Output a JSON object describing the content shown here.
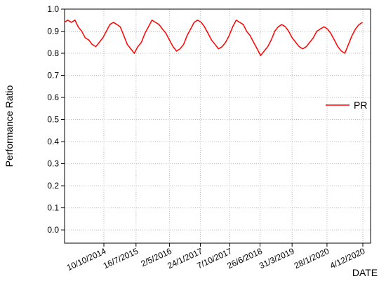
{
  "chart_data": {
    "type": "line",
    "ylabel": "Performance Ratio",
    "xlabel": "DATE",
    "series": [
      {
        "name": "PR",
        "color": "#ff0000",
        "x": [
          "1/11/2013",
          "1/12/2013",
          "1/1/2014",
          "1/2/2014",
          "1/3/2014",
          "1/4/2014",
          "1/5/2014",
          "1/6/2014",
          "1/7/2014",
          "1/8/2014",
          "1/9/2014",
          "1/10/2014",
          "1/11/2014",
          "1/12/2014",
          "1/1/2015",
          "1/2/2015",
          "1/3/2015",
          "1/4/2015",
          "1/5/2015",
          "1/6/2015",
          "1/7/2015",
          "1/8/2015",
          "1/9/2015",
          "1/10/2015",
          "1/11/2015",
          "1/12/2015",
          "1/1/2016",
          "1/2/2016",
          "1/3/2016",
          "1/4/2016",
          "1/5/2016",
          "1/6/2016",
          "1/7/2016",
          "1/8/2016",
          "1/9/2016",
          "1/10/2016",
          "1/11/2016",
          "1/12/2016",
          "1/1/2017",
          "1/2/2017",
          "1/3/2017",
          "1/4/2017",
          "1/5/2017",
          "1/6/2017",
          "1/7/2017",
          "1/8/2017",
          "1/9/2017",
          "1/10/2017",
          "1/11/2017",
          "1/12/2017",
          "1/1/2018",
          "1/2/2018",
          "1/3/2018",
          "1/4/2018",
          "1/5/2018",
          "1/6/2018",
          "1/7/2018",
          "1/8/2018",
          "1/9/2018",
          "1/10/2018",
          "1/11/2018",
          "1/12/2018",
          "1/1/2019",
          "1/2/2019",
          "1/3/2019",
          "1/4/2019",
          "1/5/2019",
          "1/6/2019",
          "1/7/2019",
          "1/8/2019",
          "1/9/2019",
          "1/10/2019",
          "1/11/2019",
          "1/12/2019",
          "1/1/2020",
          "1/2/2020",
          "1/3/2020",
          "1/4/2020",
          "1/5/2020",
          "1/6/2020",
          "1/7/2020",
          "1/8/2020",
          "1/9/2020",
          "1/10/2020",
          "1/11/2020",
          "1/12/2020"
        ],
        "values": [
          0.94,
          0.95,
          0.94,
          0.95,
          0.92,
          0.9,
          0.87,
          0.86,
          0.84,
          0.83,
          0.85,
          0.87,
          0.9,
          0.93,
          0.94,
          0.93,
          0.92,
          0.88,
          0.84,
          0.82,
          0.8,
          0.83,
          0.85,
          0.89,
          0.92,
          0.95,
          0.94,
          0.93,
          0.91,
          0.89,
          0.86,
          0.83,
          0.81,
          0.82,
          0.84,
          0.88,
          0.91,
          0.94,
          0.95,
          0.94,
          0.92,
          0.89,
          0.86,
          0.84,
          0.82,
          0.83,
          0.85,
          0.88,
          0.92,
          0.95,
          0.94,
          0.93,
          0.9,
          0.88,
          0.85,
          0.82,
          0.79,
          0.81,
          0.83,
          0.86,
          0.9,
          0.92,
          0.93,
          0.92,
          0.9,
          0.87,
          0.85,
          0.83,
          0.82,
          0.83,
          0.85,
          0.87,
          0.9,
          0.91,
          0.92,
          0.91,
          0.89,
          0.86,
          0.83,
          0.81,
          0.8,
          0.84,
          0.88,
          0.91,
          0.93,
          0.94
        ]
      }
    ],
    "xlim": [
      "3/11/2013",
      "9/2/2021"
    ],
    "xticks": [
      "10/10/2014",
      "16/7/2015",
      "2/5/2016",
      "24/1/2017",
      "7/10/2017",
      "26/6/2018",
      "31/3/2019",
      "28/1/2020",
      "4/12/2020"
    ],
    "ylim": [
      -0.06,
      1.0
    ],
    "yticks": [
      {
        "value": 0,
        "label": "0.0"
      },
      0.1,
      0.2,
      0.3,
      0.4,
      0.5,
      0.6,
      0.7,
      0.8,
      0.9,
      {
        "value": 1,
        "label": "1.0"
      }
    ],
    "grid": true,
    "legend": "right"
  }
}
